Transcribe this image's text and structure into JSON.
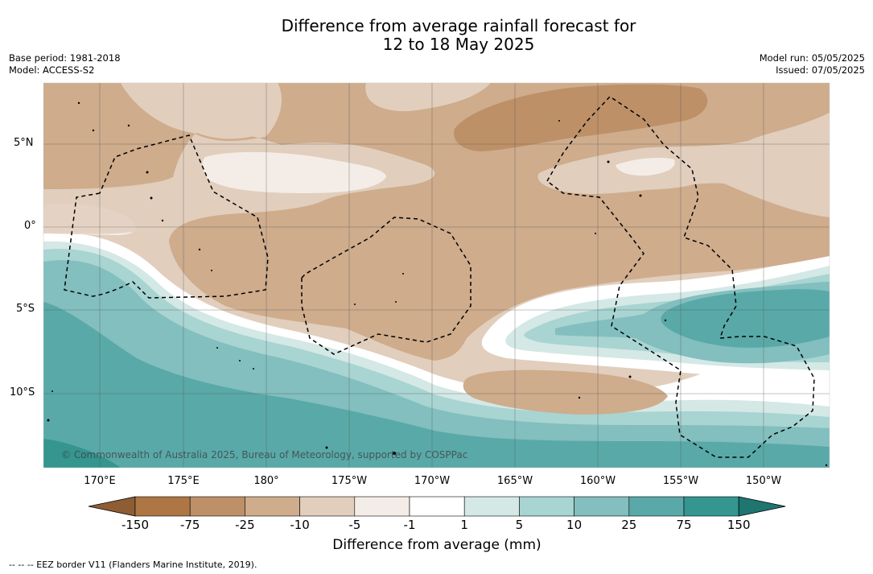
{
  "title": {
    "line1": "Difference from average rainfall forecast for",
    "line2": "12 to 18 May 2025"
  },
  "meta": {
    "base_period": "Base period: 1981-2018",
    "model": "Model: ACCESS-S2",
    "model_run": "Model run: 05/05/2025",
    "issued": "Issued: 07/05/2025"
  },
  "axes": {
    "lat_labels": [
      "5°N",
      "0°",
      "5°S",
      "10°S"
    ],
    "lon_labels": [
      "170°E",
      "175°E",
      "180°",
      "175°W",
      "170°W",
      "165°W",
      "160°W",
      "155°W",
      "150°W"
    ]
  },
  "colorbar": {
    "labels": [
      "-150",
      "-75",
      "-25",
      "-10",
      "-5",
      "-1",
      "1",
      "5",
      "10",
      "25",
      "75",
      "150"
    ],
    "colors": [
      "#8e5d34",
      "#ad7644",
      "#bd9068",
      "#ceac8c",
      "#e1cebd",
      "#f4ede7",
      "#ffffff",
      "#d4e8e6",
      "#a8d4d2",
      "#82bfbe",
      "#59a9a8",
      "#35958f",
      "#1f7671"
    ],
    "title": "Difference from average (mm)"
  },
  "copyright": "© Commonwealth of Australia 2025, Bureau of Meteorology, supported by COSPPac",
  "footnote": "--  --  -- EEZ border V11 (Flanders Marine Institute, 2019)."
}
